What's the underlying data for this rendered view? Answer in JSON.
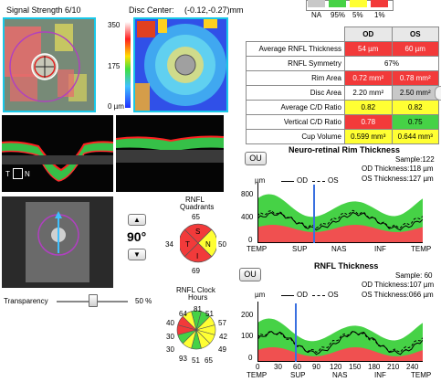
{
  "header": {
    "signal_strength": "Signal Strength  6/10",
    "disc_center_label": "Disc Center:",
    "disc_center_value": "(-0.12,-0.27)mm"
  },
  "thickness_map": {
    "scale_max": "350",
    "scale_mid": "175",
    "scale_min": "0 µm"
  },
  "legend": {
    "items": [
      "NA",
      "95%",
      "5%",
      "1%"
    ],
    "colors": [
      "#c8c8c8",
      "#46d246",
      "#ffff33",
      "#f23a3a"
    ]
  },
  "table": {
    "col_od": "OD",
    "col_os": "OS",
    "rows": [
      {
        "label": "Average RNFL Thickness",
        "od": "54 µm",
        "os": "60 µm"
      },
      {
        "label": "RNFL Symmetry",
        "both": "67%"
      },
      {
        "label": "Rim Area",
        "od": "0.72 mm²",
        "os": "0.78 mm²"
      },
      {
        "label": "Disc Area",
        "od": "2.20 mm²",
        "os": "2.50 mm²"
      },
      {
        "label": "Average C/D Ratio",
        "od": "0.82",
        "os": "0.82"
      },
      {
        "label": "Vertical C/D Ratio",
        "od": "0.78",
        "os": "0.75"
      },
      {
        "label": "Cup Volume",
        "od": "0.599 mm³",
        "os": "0.644 mm³"
      }
    ]
  },
  "bscan": {
    "label_t": "T",
    "label_n": "N"
  },
  "rotation": {
    "angle": "90°"
  },
  "transparency": {
    "label": "Transparency",
    "value": "50 %",
    "level": 0.5
  },
  "quadrants": {
    "title": "RNFL\nQuadrants",
    "title_line1": "RNFL",
    "title_line2": "Quadrants",
    "top": "65",
    "left": "34",
    "right": "50",
    "bottom": "69",
    "s": "S",
    "t": "T",
    "n": "N",
    "i": "I"
  },
  "clock": {
    "title_line1": "RNFL Clock",
    "title_line2": "Hours",
    "values": [
      "64",
      "81",
      "51",
      "57",
      "42",
      "49",
      "65",
      "51",
      "93",
      "30",
      "30",
      "40"
    ]
  },
  "rim_chart": {
    "ou_button": "OU",
    "title": "Neuro-retinal Rim Thickness",
    "unit": "µm",
    "legend_od": "OD",
    "legend_os": "OS",
    "sample": "Sample:122",
    "od_thickness": "OD Thickness:118 µm",
    "os_thickness": "OS Thickness:127 µm",
    "y_ticks": [
      "800",
      "400",
      "0"
    ],
    "x_ticks": [
      "TEMP",
      "SUP",
      "NAS",
      "INF",
      "TEMP"
    ]
  },
  "rnfl_chart": {
    "ou_button": "OU",
    "title": "RNFL Thickness",
    "unit": "µm",
    "legend_od": "OD",
    "legend_os": "OS",
    "sample": "Sample: 60",
    "od_thickness": "OD Thickness:107 µm",
    "os_thickness": "OS Thickness:066 µm",
    "y_ticks": [
      "200",
      "100",
      "0"
    ],
    "x_ticks": [
      "0",
      "30",
      "60",
      "90",
      "120",
      "150",
      "180",
      "210",
      "240"
    ],
    "x_cat": [
      "TEMP",
      "SUP",
      "NAS",
      "INF",
      "TEMP"
    ]
  }
}
